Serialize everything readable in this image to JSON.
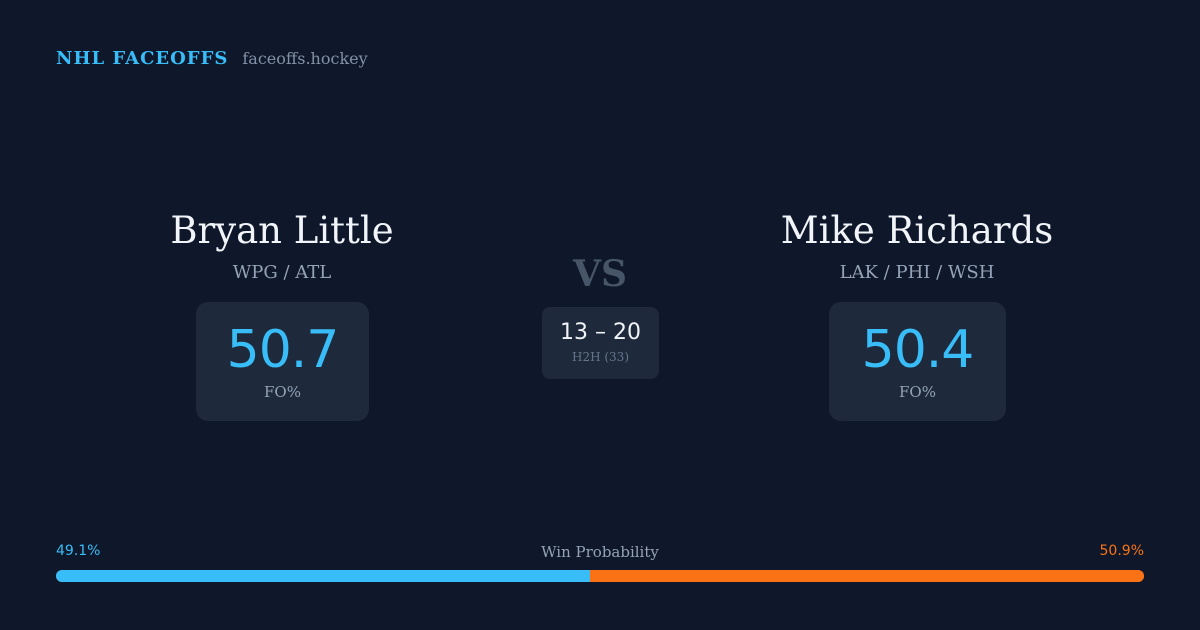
{
  "brand": {
    "name": "NHL FACEOFFS",
    "domain": "faceoffs.hockey"
  },
  "players": [
    {
      "name": "Bryan Little",
      "teams": "WPG / ATL",
      "fo_pct": "50.7",
      "fo_label": "FO%"
    },
    {
      "name": "Mike Richards",
      "teams": "LAK / PHI / WSH",
      "fo_pct": "50.4",
      "fo_label": "FO%"
    }
  ],
  "vs_label": "VS",
  "h2h": {
    "score": "13 – 20",
    "label": "H2H (33)"
  },
  "win_probability": {
    "title": "Win Probability",
    "left_label": "49.1%",
    "right_label": "50.9%",
    "left_fraction": 0.491,
    "right_fraction": 0.509
  },
  "colors": {
    "background": "#0f172a",
    "accent_left": "#38bdf8",
    "accent_right": "#f97316",
    "card": "#1e293b"
  }
}
